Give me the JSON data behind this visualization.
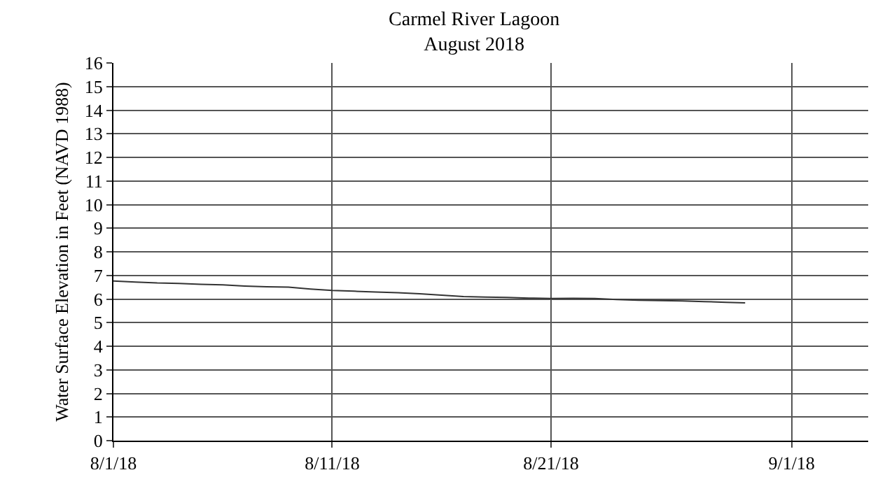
{
  "chart_data": {
    "type": "line",
    "title": "Carmel River Lagoon",
    "subtitle": "August 2018",
    "ylabel": "Water Surface Elevation in Feet (NAVD 1988)",
    "x": [
      "2018-08-01",
      "2018-08-02",
      "2018-08-03",
      "2018-08-04",
      "2018-08-05",
      "2018-08-06",
      "2018-08-07",
      "2018-08-08",
      "2018-08-09",
      "2018-08-10",
      "2018-08-11",
      "2018-08-12",
      "2018-08-13",
      "2018-08-14",
      "2018-08-15",
      "2018-08-16",
      "2018-08-17",
      "2018-08-18",
      "2018-08-19",
      "2018-08-20",
      "2018-08-21",
      "2018-08-22",
      "2018-08-23",
      "2018-08-24",
      "2018-08-25",
      "2018-08-26",
      "2018-08-27",
      "2018-08-28",
      "2018-08-29",
      "2018-08-29T21:00"
    ],
    "series": [
      {
        "color": "#333333",
        "values": [
          6.76,
          6.72,
          6.68,
          6.66,
          6.62,
          6.6,
          6.55,
          6.52,
          6.5,
          6.42,
          6.36,
          6.33,
          6.3,
          6.27,
          6.22,
          6.16,
          6.1,
          6.08,
          6.07,
          6.04,
          6.02,
          6.03,
          6.02,
          5.98,
          5.95,
          5.93,
          5.92,
          5.89,
          5.86,
          5.84
        ]
      }
    ],
    "xlim": [
      "2018-08-01",
      "2018-09-04T12:00"
    ],
    "xticks": [
      {
        "value": "2018-08-01",
        "label": "8/1/18"
      },
      {
        "value": "2018-08-11",
        "label": "8/11/18"
      },
      {
        "value": "2018-08-21",
        "label": "8/21/18"
      },
      {
        "value": "2018-09-01",
        "label": "9/1/18"
      }
    ],
    "ylim": [
      0,
      16
    ],
    "yticks": [
      0,
      1,
      2,
      3,
      4,
      5,
      6,
      7,
      8,
      9,
      10,
      11,
      12,
      13,
      14,
      15,
      16
    ],
    "grid": true,
    "marker": "none",
    "line_style": "solid"
  }
}
